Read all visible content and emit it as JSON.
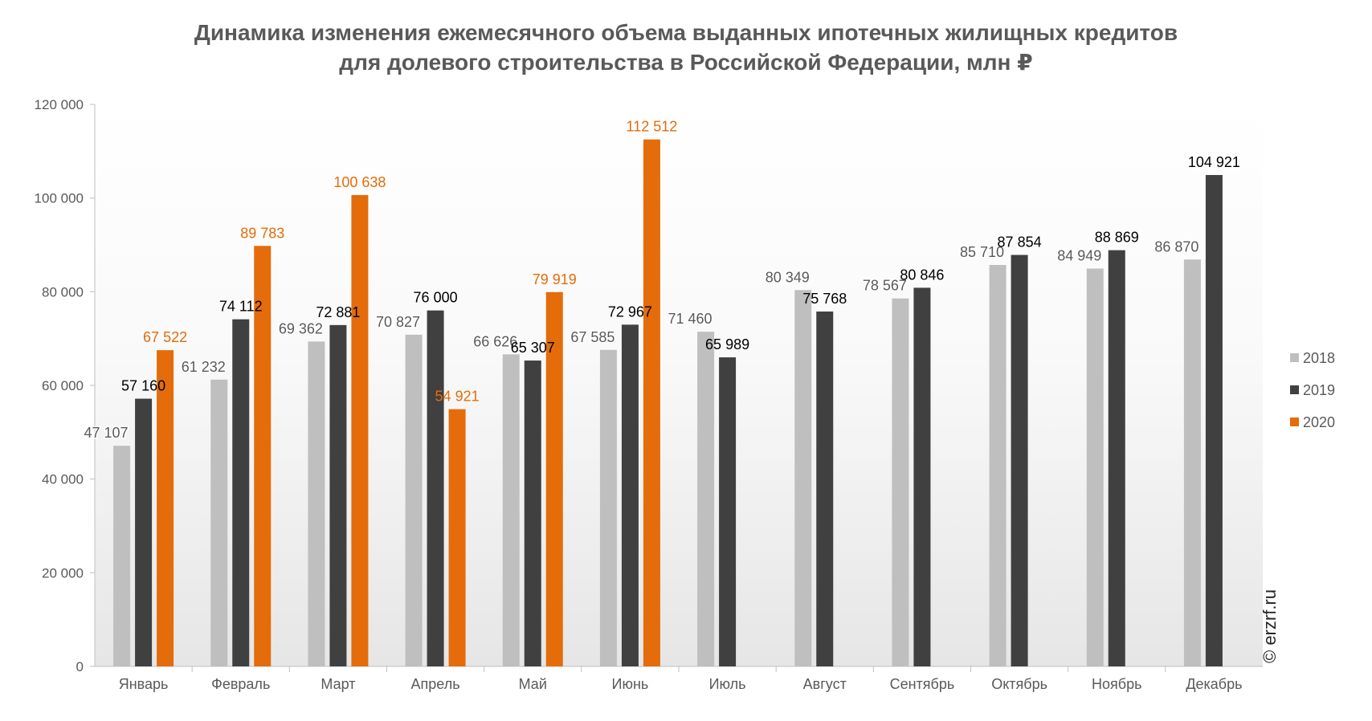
{
  "chart_data": {
    "type": "bar",
    "title": [
      "Динамика изменения ежемесячного объема выданных ипотечных жилищных кредитов",
      "для долевого строительства  в Российской  Федерации, млн ₽"
    ],
    "categories": [
      "Январь",
      "Февраль",
      "Март",
      "Апрель",
      "Май",
      "Июнь",
      "Июль",
      "Август",
      "Сентябрь",
      "Октябрь",
      "Ноябрь",
      "Декабрь"
    ],
    "ylim": [
      0,
      120000
    ],
    "yticks": [
      0,
      20000,
      40000,
      60000,
      80000,
      100000,
      120000
    ],
    "ytick_labels": [
      "0",
      "20 000",
      "40 000",
      "60 000",
      "80 000",
      "100 000",
      "120 000"
    ],
    "grid": false,
    "legend_position": "right",
    "series": [
      {
        "name": "2018",
        "color": "#bfbfbf",
        "values": [
          47107,
          61232,
          69362,
          70827,
          66626,
          67585,
          71460,
          80349,
          78567,
          85710,
          84949,
          86870
        ],
        "labels": [
          "47 107",
          "61 232",
          "69 362",
          "70 827",
          "66 626",
          "67 585",
          "71 460",
          "80 349",
          "78 567",
          "85 710",
          "84 949",
          "86 870"
        ]
      },
      {
        "name": "2019",
        "color": "#404040",
        "values": [
          57160,
          74112,
          72881,
          76000,
          65307,
          72967,
          65989,
          75768,
          80846,
          87854,
          88869,
          104921
        ],
        "labels": [
          "57 160",
          "74 112",
          "72 881",
          "76 000",
          "65 307",
          "72 967",
          "65 989",
          "75 768",
          "80 846",
          "87 854",
          "88 869",
          "104 921"
        ]
      },
      {
        "name": "2020",
        "color": "#e46c0a",
        "values": [
          67522,
          89783,
          100638,
          54921,
          79919,
          112512,
          null,
          null,
          null,
          null,
          null,
          null
        ],
        "labels": [
          "67 522",
          "89 783",
          "100 638",
          "54 921",
          "79 919",
          "112 512",
          null,
          null,
          null,
          null,
          null,
          null
        ]
      }
    ]
  },
  "watermark": "© erzrf.ru"
}
